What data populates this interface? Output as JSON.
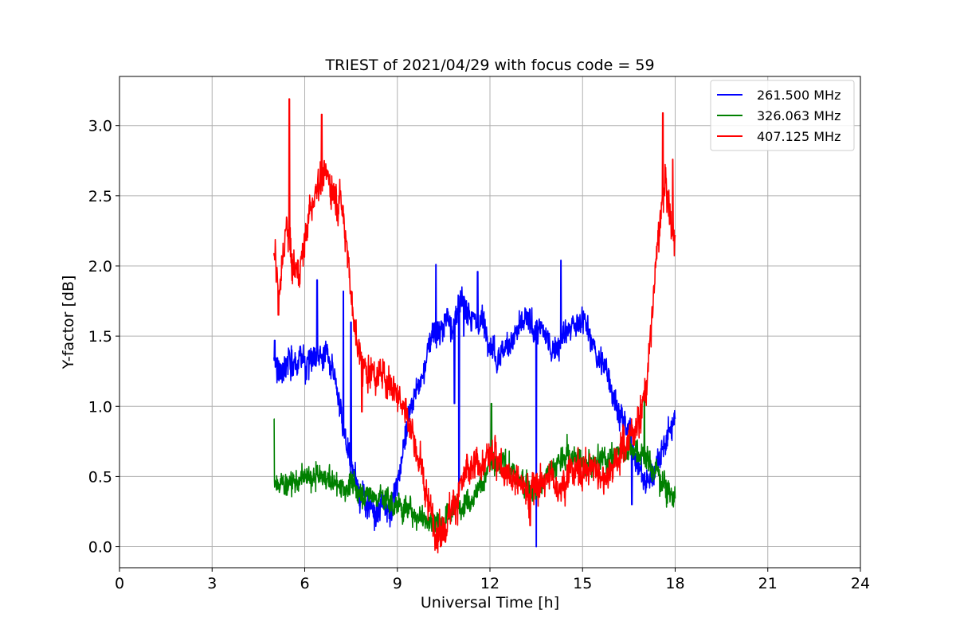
{
  "chart_data": {
    "type": "line",
    "title": "TRIEST of 2021/04/29 with focus code = 59",
    "xlabel": "Universal Time [h]",
    "ylabel": "Y-factor [dB]",
    "xlim": [
      0,
      24
    ],
    "ylim": [
      -0.15,
      3.35
    ],
    "xticks": [
      0,
      3,
      6,
      9,
      12,
      15,
      18,
      21,
      24
    ],
    "yticks": [
      0.0,
      0.5,
      1.0,
      1.5,
      2.0,
      2.5,
      3.0
    ],
    "ytick_labels": [
      "0.0",
      "0.5",
      "1.0",
      "1.5",
      "2.0",
      "2.5",
      "3.0"
    ],
    "grid": true,
    "legend_position": "top-right",
    "series": [
      {
        "name": "261.500 MHz",
        "color": "#0000ff",
        "noise": 0.09,
        "x": [
          5.0,
          5.2,
          5.5,
          5.8,
          6.1,
          6.4,
          6.7,
          6.9,
          7.1,
          7.3,
          7.5,
          7.7,
          7.9,
          8.1,
          8.3,
          8.5,
          8.8,
          9.0,
          9.2,
          9.4,
          9.6,
          9.8,
          10.0,
          10.2,
          10.4,
          10.6,
          10.8,
          11.0,
          11.2,
          11.4,
          11.6,
          11.8,
          12.0,
          12.2,
          12.4,
          12.6,
          12.8,
          13.0,
          13.2,
          13.4,
          13.6,
          13.8,
          14.0,
          14.2,
          14.4,
          14.6,
          14.8,
          15.0,
          15.2,
          15.4,
          15.6,
          15.8,
          16.0,
          16.2,
          16.4,
          16.6,
          16.8,
          17.0,
          17.2,
          17.4,
          17.6,
          17.8,
          18.0
        ],
        "y": [
          1.3,
          1.28,
          1.35,
          1.3,
          1.3,
          1.4,
          1.35,
          1.25,
          1.0,
          0.8,
          0.6,
          0.45,
          0.35,
          0.25,
          0.2,
          0.3,
          0.3,
          0.45,
          0.7,
          1.0,
          1.1,
          1.2,
          1.4,
          1.55,
          1.5,
          1.65,
          1.6,
          1.7,
          1.72,
          1.65,
          1.6,
          1.6,
          1.5,
          1.35,
          1.4,
          1.45,
          1.5,
          1.55,
          1.6,
          1.55,
          1.55,
          1.5,
          1.4,
          1.45,
          1.5,
          1.55,
          1.55,
          1.65,
          1.5,
          1.4,
          1.3,
          1.25,
          1.1,
          0.95,
          0.85,
          0.75,
          0.6,
          0.45,
          0.5,
          0.6,
          0.7,
          0.8,
          0.9
        ],
        "spikes": [
          [
            5.03,
            1.47
          ],
          [
            6.4,
            1.9
          ],
          [
            7.25,
            1.82
          ],
          [
            7.5,
            1.6
          ],
          [
            10.25,
            2.01
          ],
          [
            11.15,
            1.5
          ],
          [
            11.6,
            1.96
          ],
          [
            13.5,
            0.0
          ],
          [
            11.0,
            0.4
          ],
          [
            14.3,
            2.04
          ],
          [
            10.85,
            1.02
          ],
          [
            16.6,
            0.3
          ]
        ]
      },
      {
        "name": "326.063 MHz",
        "color": "#008000",
        "noise": 0.08,
        "x": [
          5.0,
          5.5,
          6.0,
          6.5,
          7.0,
          7.5,
          8.0,
          8.5,
          9.0,
          9.5,
          10.0,
          10.5,
          11.0,
          11.5,
          12.0,
          12.5,
          13.0,
          13.5,
          14.0,
          14.5,
          15.0,
          15.5,
          16.0,
          16.5,
          17.0,
          17.5,
          18.0
        ],
        "y": [
          0.45,
          0.45,
          0.48,
          0.5,
          0.45,
          0.42,
          0.38,
          0.35,
          0.3,
          0.25,
          0.2,
          0.18,
          0.3,
          0.38,
          0.55,
          0.6,
          0.45,
          0.4,
          0.55,
          0.65,
          0.62,
          0.6,
          0.65,
          0.72,
          0.65,
          0.5,
          0.35
        ],
        "spikes": [
          [
            5.0,
            0.91
          ],
          [
            12.05,
            1.02
          ],
          [
            17.0,
            1.09
          ]
        ]
      },
      {
        "name": "407.125 MHz",
        "color": "#ff0000",
        "noise": 0.11,
        "x": [
          5.0,
          5.2,
          5.4,
          5.6,
          5.8,
          6.0,
          6.2,
          6.4,
          6.6,
          6.8,
          7.0,
          7.2,
          7.4,
          7.6,
          7.8,
          8.0,
          8.3,
          8.6,
          8.9,
          9.2,
          9.5,
          9.8,
          10.0,
          10.3,
          10.6,
          10.9,
          11.2,
          11.5,
          11.8,
          12.1,
          12.4,
          12.7,
          13.0,
          13.3,
          13.6,
          13.9,
          14.2,
          14.5,
          14.8,
          15.1,
          15.4,
          15.7,
          16.0,
          16.3,
          16.6,
          16.9,
          17.1,
          17.3,
          17.5,
          17.7,
          17.9,
          18.0
        ],
        "y": [
          2.05,
          1.8,
          2.3,
          2.0,
          1.95,
          2.2,
          2.4,
          2.6,
          2.65,
          2.6,
          2.5,
          2.45,
          2.1,
          1.55,
          1.35,
          1.25,
          1.25,
          1.2,
          1.15,
          1.05,
          0.8,
          0.5,
          0.3,
          0.1,
          0.2,
          0.35,
          0.5,
          0.55,
          0.6,
          0.65,
          0.6,
          0.5,
          0.45,
          0.4,
          0.45,
          0.5,
          0.45,
          0.5,
          0.55,
          0.55,
          0.55,
          0.5,
          0.6,
          0.7,
          0.8,
          0.95,
          1.2,
          1.8,
          2.3,
          2.6,
          2.2,
          2.3
        ],
        "spikes": [
          [
            5.5,
            3.19
          ],
          [
            6.55,
            3.08
          ],
          [
            17.6,
            3.09
          ],
          [
            17.92,
            2.76
          ],
          [
            5.15,
            1.65
          ],
          [
            7.85,
            0.96
          ],
          [
            10.4,
            0.0
          ],
          [
            13.3,
            0.15
          ]
        ]
      }
    ]
  }
}
